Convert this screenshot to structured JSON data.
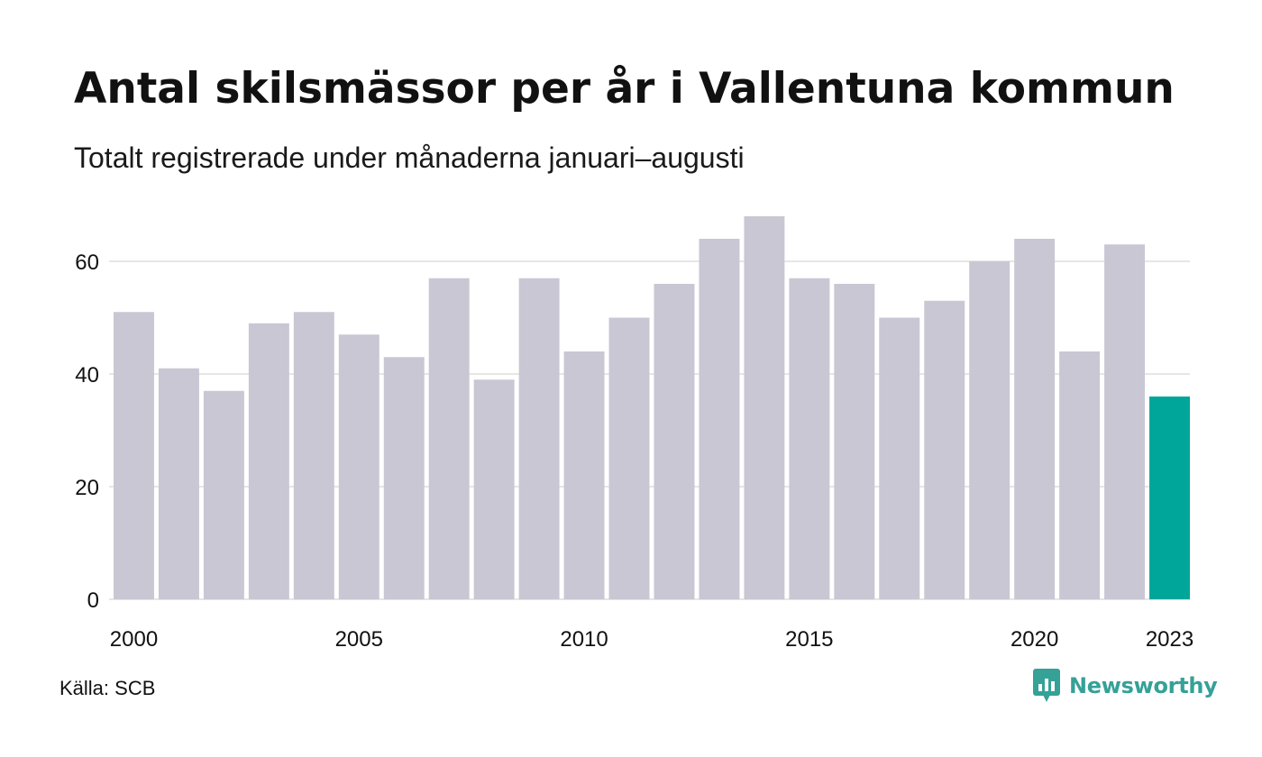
{
  "title": "Antal skilsmässor per år i Vallentuna kommun",
  "subtitle": "Totalt registrerade under månaderna januari–augusti",
  "source": "Källa: SCB",
  "logo_text": "Newsworthy",
  "colors": {
    "bar": "#c9c7d3",
    "highlight": "#00a699",
    "grid": "#e6e6e6",
    "logo": "#35a197",
    "text": "#111111"
  },
  "chart_data": {
    "type": "bar",
    "x": [
      2000,
      2001,
      2002,
      2003,
      2004,
      2005,
      2006,
      2007,
      2008,
      2009,
      2010,
      2011,
      2012,
      2013,
      2014,
      2015,
      2016,
      2017,
      2018,
      2019,
      2020,
      2021,
      2022,
      2023
    ],
    "values": [
      51,
      41,
      37,
      49,
      51,
      47,
      43,
      57,
      39,
      57,
      44,
      50,
      56,
      64,
      68,
      57,
      56,
      50,
      53,
      60,
      64,
      44,
      63,
      36
    ],
    "highlight": [
      2023
    ],
    "x_tick_labels": [
      "2000",
      "2005",
      "2010",
      "2015",
      "2020",
      "2023"
    ],
    "y_ticks": [
      0,
      20,
      40,
      60
    ],
    "ylim": [
      0,
      70
    ],
    "grid": true,
    "legend": "none"
  }
}
